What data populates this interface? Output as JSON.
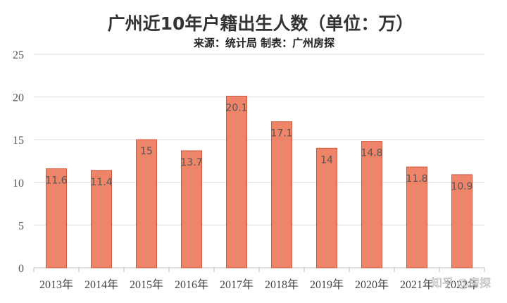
{
  "chart_data": {
    "type": "bar",
    "title": "广州近10年户籍出生人数（单位：万）",
    "subtitle": "来源：统计局    制表：广州房探",
    "categories": [
      "2013年",
      "2014年",
      "2015年",
      "2016年",
      "2017年",
      "2018年",
      "2019年",
      "2020年",
      "2021年",
      "2022年"
    ],
    "values": [
      11.6,
      11.4,
      15,
      13.7,
      20.1,
      17.1,
      14,
      14.8,
      11.8,
      10.9
    ],
    "data_labels": [
      "11.6",
      "11.4",
      "15",
      "13.7",
      "20.1",
      "17.1",
      "14",
      "14.8",
      "11.8",
      "10.9"
    ],
    "yticks": [
      0,
      5,
      10,
      15,
      20,
      25
    ],
    "ylim": [
      0,
      25
    ],
    "grid": true,
    "legend": "none",
    "bar_color": "#ee8468",
    "bar_edge_color": "#d0563e",
    "grid_color": "#d9d9d9"
  },
  "watermark": {
    "text": "知乎 @房探",
    "lettering": "知乎 @房探"
  }
}
